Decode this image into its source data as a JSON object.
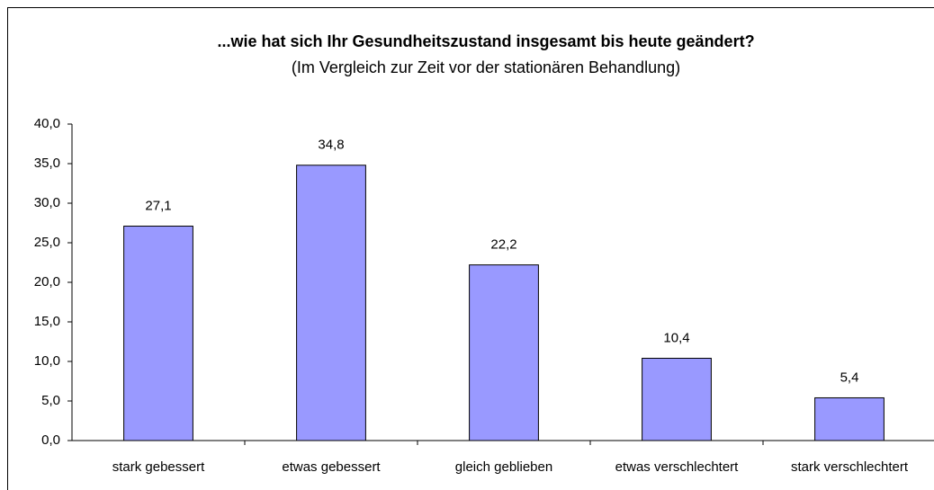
{
  "chart_data": {
    "type": "bar",
    "title": "...wie hat sich Ihr Gesundheitszustand insgesamt bis heute geändert?",
    "subtitle": "(Im Vergleich zur Zeit vor der stationären Behandlung)",
    "categories": [
      "stark gebessert",
      "etwas gebessert",
      "gleich geblieben",
      "etwas verschlechtert",
      "stark verschlechtert"
    ],
    "values": [
      27.1,
      34.8,
      22.2,
      10.4,
      5.4
    ],
    "value_labels": [
      "27,1",
      "34,8",
      "22,2",
      "10,4",
      "5,4"
    ],
    "color": "#9999ff",
    "ylim": [
      0,
      40
    ],
    "yticks": [
      {
        "value": 0,
        "label": "0,0"
      },
      {
        "value": 5,
        "label": "5,0"
      },
      {
        "value": 10,
        "label": "10,0"
      },
      {
        "value": 15,
        "label": "15,0"
      },
      {
        "value": 20,
        "label": "20,0"
      },
      {
        "value": 25,
        "label": "25,0"
      },
      {
        "value": 30,
        "label": "30,0"
      },
      {
        "value": 35,
        "label": "35,0"
      },
      {
        "value": 40,
        "label": "40,0"
      }
    ],
    "grid": false
  }
}
